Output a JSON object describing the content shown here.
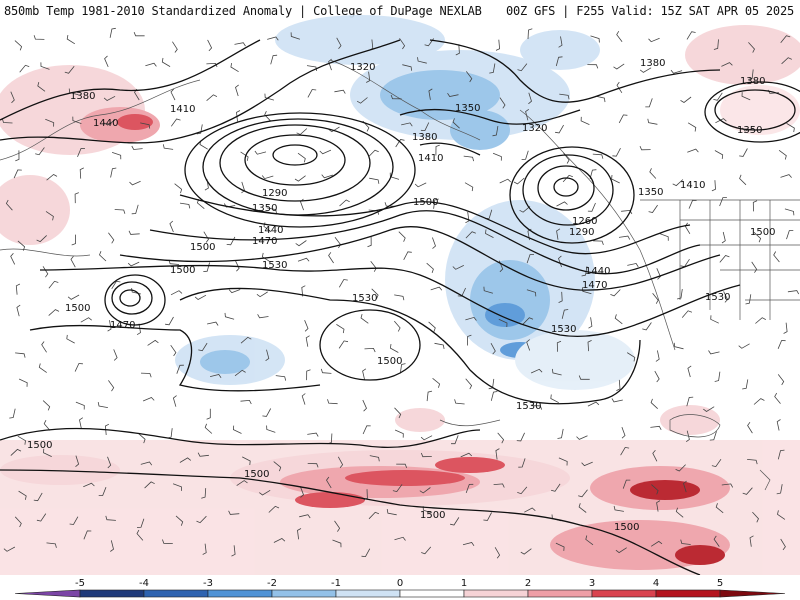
{
  "header": {
    "left": "850mb Temp 1981-2010 Standardized Anomaly | College of DuPage NEXLAB",
    "right": "00Z GFS | F255 Valid: 15Z SAT APR 05 2025"
  },
  "colorbar": {
    "ticks": [
      "-5",
      "-4",
      "-3",
      "-2",
      "-1",
      "0",
      "1",
      "2",
      "3",
      "4",
      "5"
    ],
    "colors": [
      "#7b45a6",
      "#1f3a7a",
      "#2e63b0",
      "#4f93d6",
      "#93c1e8",
      "#cfe2f4",
      "#ffffff",
      "#f6d3d6",
      "#ee9ea6",
      "#d9434f",
      "#b4141e",
      "#7d0a10",
      "#f2c12e"
    ]
  },
  "map": {
    "background": "#ffffff",
    "contour_labels": [
      {
        "text": "1380",
        "id": "h1380-nw"
      },
      {
        "text": "1440",
        "id": "h1440-nw"
      },
      {
        "text": "1410",
        "id": "h1410-nw"
      },
      {
        "text": "1320",
        "id": "h1320-n"
      },
      {
        "text": "1350",
        "id": "h1350-n"
      },
      {
        "text": "1380",
        "id": "h1380-n"
      },
      {
        "text": "1410",
        "id": "h1410-n"
      },
      {
        "text": "1320",
        "id": "h1320-ne"
      },
      {
        "text": "1380",
        "id": "h1380-ne"
      },
      {
        "text": "1380",
        "id": "h1380-e"
      },
      {
        "text": "1350",
        "id": "h1350-e"
      },
      {
        "text": "1290",
        "id": "h1290-w"
      },
      {
        "text": "1350",
        "id": "h1350-w"
      },
      {
        "text": "1440",
        "id": "h1440-w"
      },
      {
        "text": "1470",
        "id": "h1470-w"
      },
      {
        "text": "1500",
        "id": "h1500-w"
      },
      {
        "text": "1500",
        "id": "h1500-c"
      },
      {
        "text": "1530",
        "id": "h1530-c"
      },
      {
        "text": "1260",
        "id": "h1260-e"
      },
      {
        "text": "1290",
        "id": "h1290-e"
      },
      {
        "text": "1350",
        "id": "h1350-e2"
      },
      {
        "text": "1410",
        "id": "h1410-e"
      },
      {
        "text": "1500",
        "id": "h1500-e"
      },
      {
        "text": "1440",
        "id": "h1440-e"
      },
      {
        "text": "1470",
        "id": "h1470-e"
      },
      {
        "text": "1530",
        "id": "h1530-e"
      },
      {
        "text": "1500",
        "id": "h1500-far-w"
      },
      {
        "text": "1470",
        "id": "h1470-far-w"
      },
      {
        "text": "1500",
        "id": "h1500-w2"
      },
      {
        "text": "1530",
        "id": "h1530-c2"
      },
      {
        "text": "1500",
        "id": "h1500-c2"
      },
      {
        "text": "1530",
        "id": "h1530-s"
      },
      {
        "text": "1530",
        "id": "h1530-se"
      },
      {
        "text": "1500",
        "id": "h1500-sw"
      },
      {
        "text": "1500",
        "id": "h1500-s"
      },
      {
        "text": "1500",
        "id": "h1500-s2"
      },
      {
        "text": "1500",
        "id": "h1500-se"
      }
    ]
  }
}
